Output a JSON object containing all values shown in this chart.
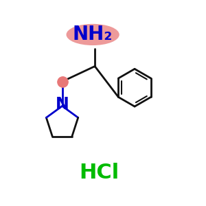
{
  "background_color": "#ffffff",
  "nh2_label": "NH₂",
  "nh2_color": "#0000cc",
  "nh2_ellipse_color": "#e87878",
  "nh2_ellipse_alpha": 0.75,
  "n_label": "N",
  "n_color": "#0000cc",
  "hcl_label": "HCl",
  "hcl_color": "#00bb00",
  "hcl_fontsize": 22,
  "nh2_fontsize": 20,
  "n_fontsize": 17,
  "line_color": "#111111",
  "lw": 2.0,
  "red_dot_color": "#e87878",
  "figsize": [
    3.0,
    3.0
  ],
  "dpi": 100
}
